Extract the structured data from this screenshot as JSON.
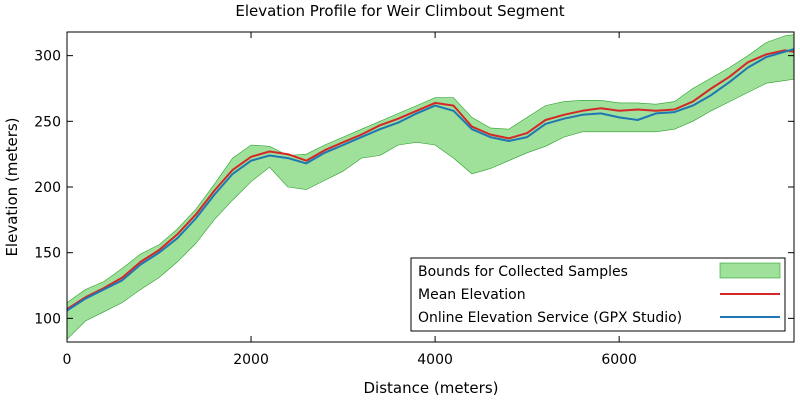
{
  "chart_data": {
    "type": "line",
    "title": "Elevation Profile for Weir Climbout Segment",
    "xlabel": "Distance (meters)",
    "ylabel": "Elevation (meters)",
    "xlim": [
      0,
      7900
    ],
    "ylim": [
      82,
      318
    ],
    "xticks": [
      0,
      2000,
      4000,
      6000
    ],
    "yticks": [
      100,
      150,
      200,
      250,
      300
    ],
    "grid": false,
    "legend_position": "bottom-right",
    "x": [
      0,
      200,
      400,
      600,
      800,
      1000,
      1200,
      1400,
      1600,
      1800,
      2000,
      2200,
      2400,
      2600,
      2800,
      3000,
      3200,
      3400,
      3600,
      3800,
      4000,
      4200,
      4400,
      4600,
      4800,
      5000,
      5200,
      5400,
      5600,
      5800,
      6000,
      6200,
      6400,
      6600,
      6800,
      7000,
      7200,
      7400,
      7600,
      7800,
      7900
    ],
    "band": {
      "name": "Bounds for Collected Samples",
      "color": "#9fe09a",
      "edge_color": "#2ca02c",
      "upper": [
        112,
        122,
        128,
        138,
        149,
        156,
        168,
        183,
        202,
        222,
        232,
        231,
        224,
        225,
        232,
        238,
        244,
        250,
        256,
        262,
        268,
        268,
        253,
        245,
        244,
        253,
        262,
        265,
        266,
        266,
        264,
        264,
        263,
        265,
        275,
        283,
        291,
        300,
        310,
        315,
        316
      ],
      "lower": [
        84,
        98,
        105,
        112,
        122,
        131,
        143,
        157,
        175,
        190,
        204,
        215,
        200,
        198,
        205,
        212,
        222,
        224,
        232,
        234,
        232,
        222,
        210,
        214,
        220,
        226,
        231,
        238,
        242,
        242,
        242,
        242,
        242,
        244,
        250,
        258,
        265,
        272,
        279,
        281,
        282
      ]
    },
    "series": [
      {
        "name": "Mean Elevation",
        "color": "#d62728",
        "values": [
          107,
          116,
          123,
          131,
          143,
          152,
          164,
          179,
          197,
          213,
          223,
          227,
          225,
          220,
          228,
          234,
          240,
          247,
          252,
          258,
          264,
          262,
          246,
          240,
          237,
          241,
          251,
          255,
          258,
          260,
          258,
          259,
          258,
          259,
          265,
          275,
          284,
          295,
          301,
          304,
          303
        ]
      },
      {
        "name": "Online Elevation Service (GPX Studio)",
        "color": "#1f77b4",
        "values": [
          106,
          115,
          122,
          129,
          141,
          150,
          161,
          176,
          194,
          210,
          220,
          224,
          222,
          218,
          226,
          232,
          238,
          244,
          249,
          256,
          262,
          258,
          244,
          238,
          235,
          238,
          248,
          252,
          255,
          256,
          253,
          251,
          256,
          257,
          262,
          270,
          280,
          291,
          299,
          303,
          305
        ]
      }
    ]
  }
}
